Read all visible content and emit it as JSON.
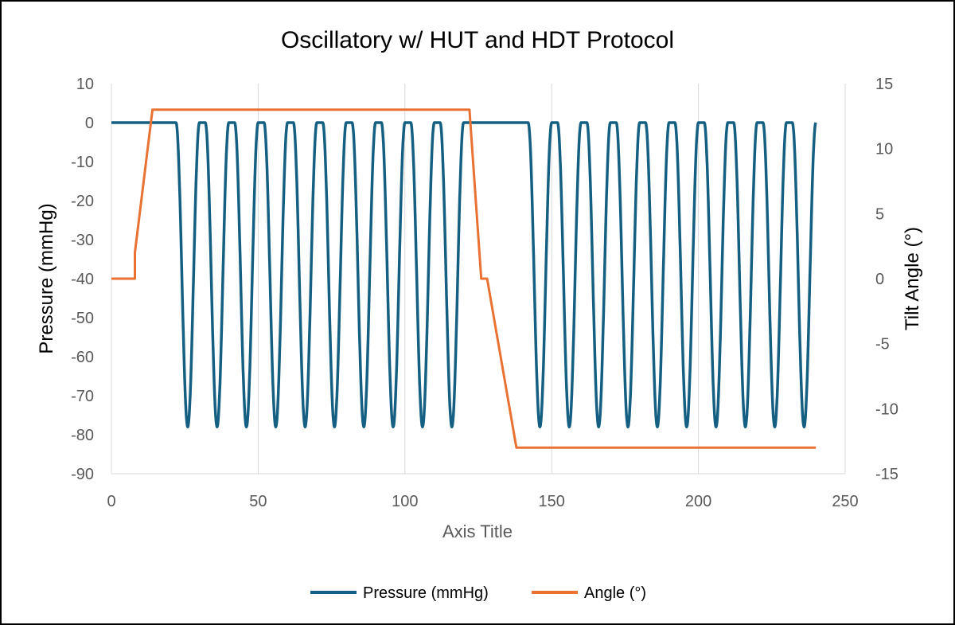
{
  "chart_data": {
    "type": "line",
    "title": "Oscillatory w/ HUT and HDT Protocol",
    "xlabel": "Axis Title",
    "ylabel": "Pressure (mmHg)",
    "y2label": "Tilt Angle (°)",
    "xlim": [
      0,
      250
    ],
    "ylim": [
      -90,
      10
    ],
    "y2lim": [
      -15,
      15
    ],
    "x_ticks": [
      0,
      50,
      100,
      150,
      200,
      250
    ],
    "y_ticks": [
      10,
      0,
      -10,
      -20,
      -30,
      -40,
      -50,
      -60,
      -70,
      -80,
      -90
    ],
    "y2_ticks": [
      15,
      10,
      5,
      0,
      -5,
      -10,
      -15
    ],
    "grid": "vertical",
    "legend_position": "bottom",
    "colors": {
      "pressure": "#156082",
      "angle": "#E97132",
      "grid": "#D9D9D9",
      "frame": "#000000"
    },
    "series": [
      {
        "name": "Pressure (mmHg)",
        "axis": "left",
        "baseline": 0,
        "trough": -78,
        "segments": [
          {
            "x_start": 0,
            "x_end": 20,
            "cycles": 0
          },
          {
            "x_start": 20,
            "x_end": 120,
            "cycles": 10
          },
          {
            "x_start": 120,
            "x_end": 140,
            "cycles": 0
          },
          {
            "x_start": 140,
            "x_end": 240,
            "cycles": 10
          }
        ]
      },
      {
        "name": "Angle (°)",
        "axis": "right",
        "x": [
          0,
          8,
          8,
          14,
          122,
          126,
          126,
          128,
          128,
          138,
          240
        ],
        "y": [
          0,
          0,
          2,
          13,
          13,
          0,
          0,
          0,
          0,
          -13,
          -13
        ]
      }
    ]
  }
}
